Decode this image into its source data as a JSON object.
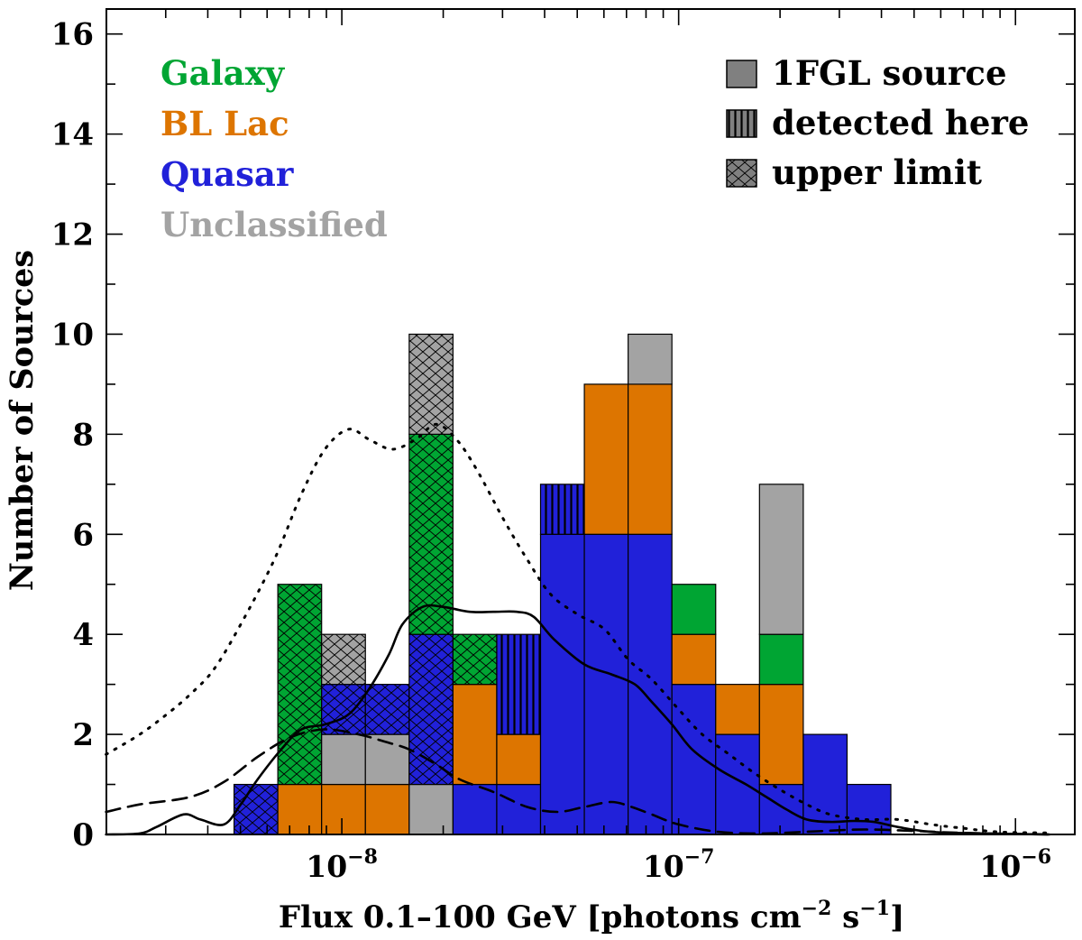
{
  "chart_data": {
    "type": "bar",
    "subtype": "stacked histogram with density curves",
    "xlabel": "Flux 0.1–100 GeV [photons cm−2 s−1]",
    "xlabel_parts": {
      "main": "Flux 0.1–100 GeV [photons cm",
      "exp1": "−2",
      "mid": " s",
      "exp2": "−1",
      "end": "]"
    },
    "ylabel": "Number of Sources",
    "xscale": "log",
    "xlim": [
      2e-09,
      1.5e-06
    ],
    "ylim": [
      0,
      16.5
    ],
    "y_ticks": [
      0,
      2,
      4,
      6,
      8,
      10,
      12,
      14,
      16
    ],
    "x_ticks": [
      {
        "value": 1e-08,
        "base": "10",
        "exp": "-8"
      },
      {
        "value": 1e-07,
        "base": "10",
        "exp": "-7"
      },
      {
        "value": 1e-06,
        "base": "10",
        "exp": "-6"
      }
    ],
    "bin_log_start": -8.32,
    "bin_log_width": 0.13,
    "class_colors": {
      "Galaxy": "#00a533",
      "BL Lac": "#dd7500",
      "Quasar": "#2121d9",
      "Unclassified": "#a3a3a3"
    },
    "class_legend": [
      {
        "label": "Galaxy",
        "color": "#00a533"
      },
      {
        "label": "BL Lac",
        "color": "#dd7500"
      },
      {
        "label": "Quasar",
        "color": "#2121d9"
      },
      {
        "label": "Unclassified",
        "color": "#a3a3a3"
      }
    ],
    "pattern_legend": [
      {
        "label": "1FGL source",
        "pattern": "solid"
      },
      {
        "label": "detected here",
        "pattern": "vertical"
      },
      {
        "label": "upper limit",
        "pattern": "crosshatch"
      }
    ],
    "bins": [
      {
        "index": 0,
        "segments": [
          {
            "class": "Quasar",
            "count": 1,
            "pattern": "crosshatch"
          }
        ]
      },
      {
        "index": 1,
        "segments": [
          {
            "class": "BL Lac",
            "count": 1,
            "pattern": "solid"
          },
          {
            "class": "Galaxy",
            "count": 4,
            "pattern": "crosshatch"
          }
        ]
      },
      {
        "index": 2,
        "segments": [
          {
            "class": "BL Lac",
            "count": 1,
            "pattern": "solid"
          },
          {
            "class": "Unclassified",
            "count": 1,
            "pattern": "solid"
          },
          {
            "class": "Quasar",
            "count": 1,
            "pattern": "crosshatch"
          },
          {
            "class": "Unclassified",
            "count": 1,
            "pattern": "crosshatch"
          }
        ]
      },
      {
        "index": 3,
        "segments": [
          {
            "class": "BL Lac",
            "count": 1,
            "pattern": "solid"
          },
          {
            "class": "Unclassified",
            "count": 1,
            "pattern": "solid"
          },
          {
            "class": "Quasar",
            "count": 1,
            "pattern": "crosshatch"
          }
        ]
      },
      {
        "index": 4,
        "segments": [
          {
            "class": "Unclassified",
            "count": 1,
            "pattern": "solid"
          },
          {
            "class": "Quasar",
            "count": 3,
            "pattern": "crosshatch"
          },
          {
            "class": "Galaxy",
            "count": 4,
            "pattern": "crosshatch"
          },
          {
            "class": "Unclassified",
            "count": 2,
            "pattern": "crosshatch"
          }
        ]
      },
      {
        "index": 5,
        "segments": [
          {
            "class": "Quasar",
            "count": 1,
            "pattern": "solid"
          },
          {
            "class": "BL Lac",
            "count": 2,
            "pattern": "solid"
          },
          {
            "class": "Galaxy",
            "count": 1,
            "pattern": "crosshatch"
          }
        ]
      },
      {
        "index": 6,
        "segments": [
          {
            "class": "Quasar",
            "count": 1,
            "pattern": "solid"
          },
          {
            "class": "BL Lac",
            "count": 1,
            "pattern": "solid"
          },
          {
            "class": "Quasar",
            "count": 2,
            "pattern": "vertical"
          }
        ]
      },
      {
        "index": 7,
        "segments": [
          {
            "class": "Quasar",
            "count": 6,
            "pattern": "solid"
          },
          {
            "class": "Quasar",
            "count": 1,
            "pattern": "vertical"
          }
        ]
      },
      {
        "index": 8,
        "segments": [
          {
            "class": "Quasar",
            "count": 6,
            "pattern": "solid"
          },
          {
            "class": "BL Lac",
            "count": 3,
            "pattern": "solid"
          }
        ]
      },
      {
        "index": 9,
        "segments": [
          {
            "class": "Quasar",
            "count": 6,
            "pattern": "solid"
          },
          {
            "class": "BL Lac",
            "count": 3,
            "pattern": "solid"
          },
          {
            "class": "Unclassified",
            "count": 1,
            "pattern": "solid"
          }
        ]
      },
      {
        "index": 10,
        "segments": [
          {
            "class": "Quasar",
            "count": 3,
            "pattern": "solid"
          },
          {
            "class": "BL Lac",
            "count": 1,
            "pattern": "solid"
          },
          {
            "class": "Galaxy",
            "count": 1,
            "pattern": "solid"
          }
        ]
      },
      {
        "index": 11,
        "segments": [
          {
            "class": "Quasar",
            "count": 2,
            "pattern": "solid"
          },
          {
            "class": "BL Lac",
            "count": 1,
            "pattern": "solid"
          }
        ]
      },
      {
        "index": 12,
        "segments": [
          {
            "class": "Quasar",
            "count": 1,
            "pattern": "solid"
          },
          {
            "class": "BL Lac",
            "count": 2,
            "pattern": "solid"
          },
          {
            "class": "Galaxy",
            "count": 1,
            "pattern": "solid"
          },
          {
            "class": "Unclassified",
            "count": 3,
            "pattern": "solid"
          }
        ]
      },
      {
        "index": 13,
        "segments": [
          {
            "class": "Quasar",
            "count": 2,
            "pattern": "solid"
          }
        ]
      },
      {
        "index": 14,
        "segments": [
          {
            "class": "Quasar",
            "count": 1,
            "pattern": "solid"
          }
        ]
      }
    ],
    "curves": [
      {
        "name": "solid",
        "style": "solid",
        "points": [
          [
            -8.7,
            0.0
          ],
          [
            -8.6,
            0.02
          ],
          [
            -8.55,
            0.15
          ],
          [
            -8.47,
            0.4
          ],
          [
            -8.42,
            0.3
          ],
          [
            -8.35,
            0.2
          ],
          [
            -8.3,
            0.6
          ],
          [
            -8.25,
            1.1
          ],
          [
            -8.18,
            1.7
          ],
          [
            -8.12,
            2.1
          ],
          [
            -8.05,
            2.2
          ],
          [
            -7.98,
            2.4
          ],
          [
            -7.92,
            2.9
          ],
          [
            -7.86,
            3.6
          ],
          [
            -7.82,
            4.2
          ],
          [
            -7.76,
            4.55
          ],
          [
            -7.7,
            4.55
          ],
          [
            -7.62,
            4.45
          ],
          [
            -7.55,
            4.45
          ],
          [
            -7.48,
            4.45
          ],
          [
            -7.43,
            4.35
          ],
          [
            -7.37,
            3.9
          ],
          [
            -7.28,
            3.4
          ],
          [
            -7.2,
            3.2
          ],
          [
            -7.13,
            3.0
          ],
          [
            -7.08,
            2.65
          ],
          [
            -7.02,
            2.2
          ],
          [
            -6.96,
            1.7
          ],
          [
            -6.88,
            1.3
          ],
          [
            -6.8,
            1.0
          ],
          [
            -6.74,
            0.75
          ],
          [
            -6.68,
            0.5
          ],
          [
            -6.62,
            0.3
          ],
          [
            -6.55,
            0.25
          ],
          [
            -6.48,
            0.27
          ],
          [
            -6.42,
            0.25
          ],
          [
            -6.35,
            0.15
          ],
          [
            -6.25,
            0.05
          ],
          [
            -6.1,
            0.02
          ],
          [
            -5.9,
            0.0
          ]
        ]
      },
      {
        "name": "dashed",
        "style": "dashed",
        "points": [
          [
            -8.7,
            0.45
          ],
          [
            -8.6,
            0.6
          ],
          [
            -8.45,
            0.75
          ],
          [
            -8.35,
            1.05
          ],
          [
            -8.25,
            1.55
          ],
          [
            -8.15,
            1.95
          ],
          [
            -8.05,
            2.1
          ],
          [
            -7.95,
            2.0
          ],
          [
            -7.87,
            1.85
          ],
          [
            -7.8,
            1.7
          ],
          [
            -7.72,
            1.4
          ],
          [
            -7.65,
            1.1
          ],
          [
            -7.55,
            0.85
          ],
          [
            -7.45,
            0.55
          ],
          [
            -7.36,
            0.45
          ],
          [
            -7.28,
            0.55
          ],
          [
            -7.2,
            0.65
          ],
          [
            -7.14,
            0.55
          ],
          [
            -7.08,
            0.4
          ],
          [
            -7.0,
            0.2
          ],
          [
            -6.88,
            0.05
          ],
          [
            -6.75,
            0.02
          ],
          [
            -6.6,
            0.06
          ],
          [
            -6.45,
            0.1
          ],
          [
            -6.3,
            0.07
          ],
          [
            -6.15,
            0.03
          ],
          [
            -5.9,
            0.0
          ]
        ]
      },
      {
        "name": "dotted",
        "style": "dotted",
        "points": [
          [
            -8.7,
            1.6
          ],
          [
            -8.6,
            2.0
          ],
          [
            -8.52,
            2.4
          ],
          [
            -8.45,
            2.8
          ],
          [
            -8.38,
            3.3
          ],
          [
            -8.3,
            4.2
          ],
          [
            -8.2,
            5.5
          ],
          [
            -8.12,
            6.8
          ],
          [
            -8.05,
            7.7
          ],
          [
            -7.98,
            8.1
          ],
          [
            -7.92,
            7.9
          ],
          [
            -7.85,
            7.7
          ],
          [
            -7.78,
            7.9
          ],
          [
            -7.72,
            8.2
          ],
          [
            -7.66,
            7.9
          ],
          [
            -7.6,
            7.3
          ],
          [
            -7.52,
            6.3
          ],
          [
            -7.45,
            5.5
          ],
          [
            -7.38,
            4.8
          ],
          [
            -7.3,
            4.4
          ],
          [
            -7.22,
            4.1
          ],
          [
            -7.15,
            3.5
          ],
          [
            -7.08,
            3.1
          ],
          [
            -7.0,
            2.5
          ],
          [
            -6.93,
            2.0
          ],
          [
            -6.85,
            1.6
          ],
          [
            -6.78,
            1.25
          ],
          [
            -6.7,
            0.9
          ],
          [
            -6.62,
            0.6
          ],
          [
            -6.55,
            0.4
          ],
          [
            -6.45,
            0.3
          ],
          [
            -6.35,
            0.3
          ],
          [
            -6.25,
            0.2
          ],
          [
            -6.15,
            0.12
          ],
          [
            -6.05,
            0.05
          ],
          [
            -5.9,
            0.03
          ]
        ]
      }
    ]
  }
}
